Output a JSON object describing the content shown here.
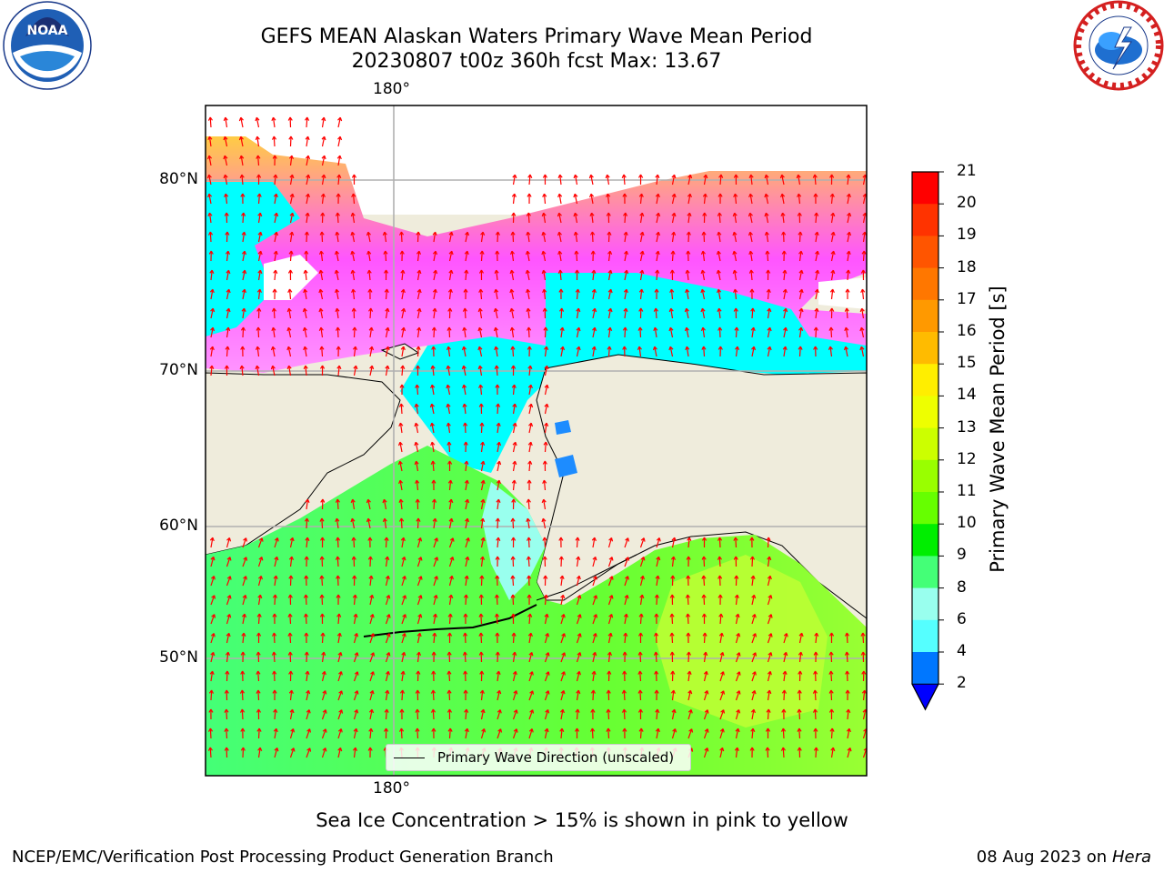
{
  "title_line1": "GEFS MEAN Alaskan Waters Primary Wave Mean Period",
  "title_line2": "20230807 t00z 360h fcst   Max: 13.67",
  "logos": {
    "left": {
      "icon": "noaa-logo",
      "text": "NOAA"
    },
    "right": {
      "icon": "nws-logo"
    }
  },
  "map": {
    "lon_label_top": "180°",
    "lon_label_bottom": "180°",
    "lat_labels": [
      "80°N",
      "70°N",
      "60°N",
      "50°N"
    ],
    "legend_label": "Primary Wave Direction (unscaled)",
    "colors": {
      "land": "#efecdc",
      "ocean_low": "#00ff7f",
      "ocean_green": "#40ff40",
      "arrow": "#ff0000",
      "ice": "#ff55ff"
    }
  },
  "colorbar": {
    "title": "Primary Wave Mean Period [s]",
    "ticks": [
      "21",
      "20",
      "19",
      "18",
      "17",
      "16",
      "15",
      "14",
      "13",
      "12",
      "11",
      "10",
      "9",
      "8",
      "6",
      "4",
      "2"
    ],
    "colors": [
      "#ff0000",
      "#ff3300",
      "#ff5500",
      "#ff7700",
      "#ff9900",
      "#ffbb00",
      "#ffee00",
      "#eeff00",
      "#ccff00",
      "#99ff00",
      "#66ff00",
      "#00ee00",
      "#44ff77",
      "#99ffee",
      "#55ffff",
      "#00ffff",
      "#0077ff"
    ],
    "extend_color": "#0000ff"
  },
  "note": "Sea Ice Concentration > 15% is shown in pink to yellow",
  "footer": {
    "left": "NCEP/EMC/Verification Post Processing Product Generation Branch",
    "right_date": "08 Aug 2023 on",
    "right_host": "Hera"
  }
}
